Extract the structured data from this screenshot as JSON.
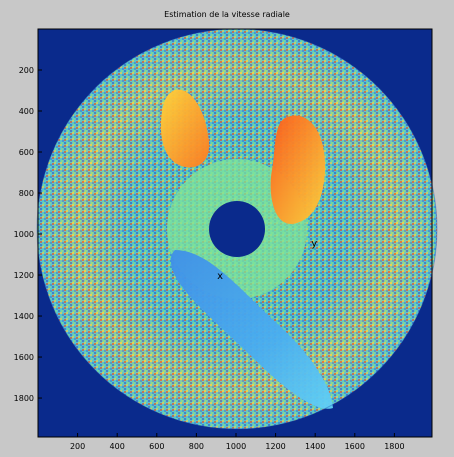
{
  "figure": {
    "title": "Estimation de la vitesse radiale",
    "background": "#c8c8c8",
    "axes_background": "#0a2a8c"
  },
  "chart_data": {
    "type": "heatmap",
    "title": "Estimation de la vitesse radiale",
    "xlabel": "",
    "ylabel": "",
    "xlim": [
      0,
      1990
    ],
    "ylim": [
      1990,
      0
    ],
    "x_ticks": [
      200,
      400,
      600,
      800,
      1000,
      1200,
      1400,
      1600,
      1800
    ],
    "y_ticks": [
      200,
      400,
      600,
      800,
      1000,
      1200,
      1400,
      1600,
      1800
    ],
    "colormap": "jet",
    "annotations": [
      {
        "text": "y",
        "x": 1380,
        "y": 1060
      },
      {
        "text": "x",
        "x": 905,
        "y": 1220
      }
    ]
  }
}
